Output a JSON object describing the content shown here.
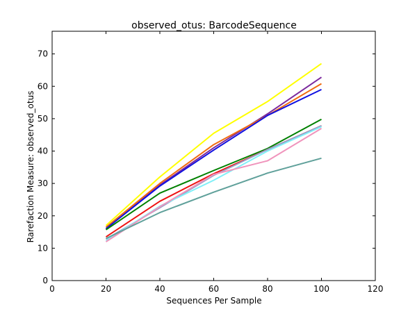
{
  "chart_data": {
    "type": "line",
    "title": "observed_otus: BarcodeSequence",
    "xlabel": "Sequences Per Sample",
    "ylabel": "Rarefaction Measure: observed_otus",
    "xlim": [
      0,
      120
    ],
    "ylim": [
      0,
      77
    ],
    "x_ticks": [
      "0",
      "20",
      "40",
      "60",
      "80",
      "100",
      "120"
    ],
    "y_ticks": [
      "0",
      "10",
      "20",
      "30",
      "40",
      "50",
      "60",
      "70"
    ],
    "grid": false,
    "x": [
      20,
      40,
      60,
      80,
      100
    ],
    "series": [
      {
        "color": "#ffff00",
        "values": [
          17.0,
          32.0,
          45.5,
          55.3,
          67.0
        ]
      },
      {
        "color": "#7b2a9e",
        "values": [
          16.0,
          29.5,
          41.0,
          51.5,
          62.8
        ]
      },
      {
        "color": "#f06a10",
        "values": [
          16.5,
          30.0,
          42.0,
          51.0,
          60.8
        ]
      },
      {
        "color": "#1010e0",
        "values": [
          16.0,
          29.2,
          40.3,
          51.0,
          59.0
        ]
      },
      {
        "color": "#008000",
        "values": [
          15.7,
          27.0,
          34.0,
          40.8,
          49.8
        ]
      },
      {
        "color": "#ee1111",
        "values": [
          13.5,
          24.5,
          33.0,
          40.5,
          47.8
        ]
      },
      {
        "color": "#99a0c8",
        "values": [
          12.8,
          22.5,
          32.5,
          40.5,
          47.8
        ]
      },
      {
        "color": "#80f0f8",
        "values": [
          12.3,
          23.0,
          31.0,
          40.0,
          47.5
        ]
      },
      {
        "color": "#f094bc",
        "values": [
          12.0,
          22.8,
          32.8,
          37.0,
          47.0
        ]
      },
      {
        "color": "#5fa09a",
        "values": [
          13.0,
          21.0,
          27.3,
          33.2,
          37.8
        ]
      }
    ]
  }
}
